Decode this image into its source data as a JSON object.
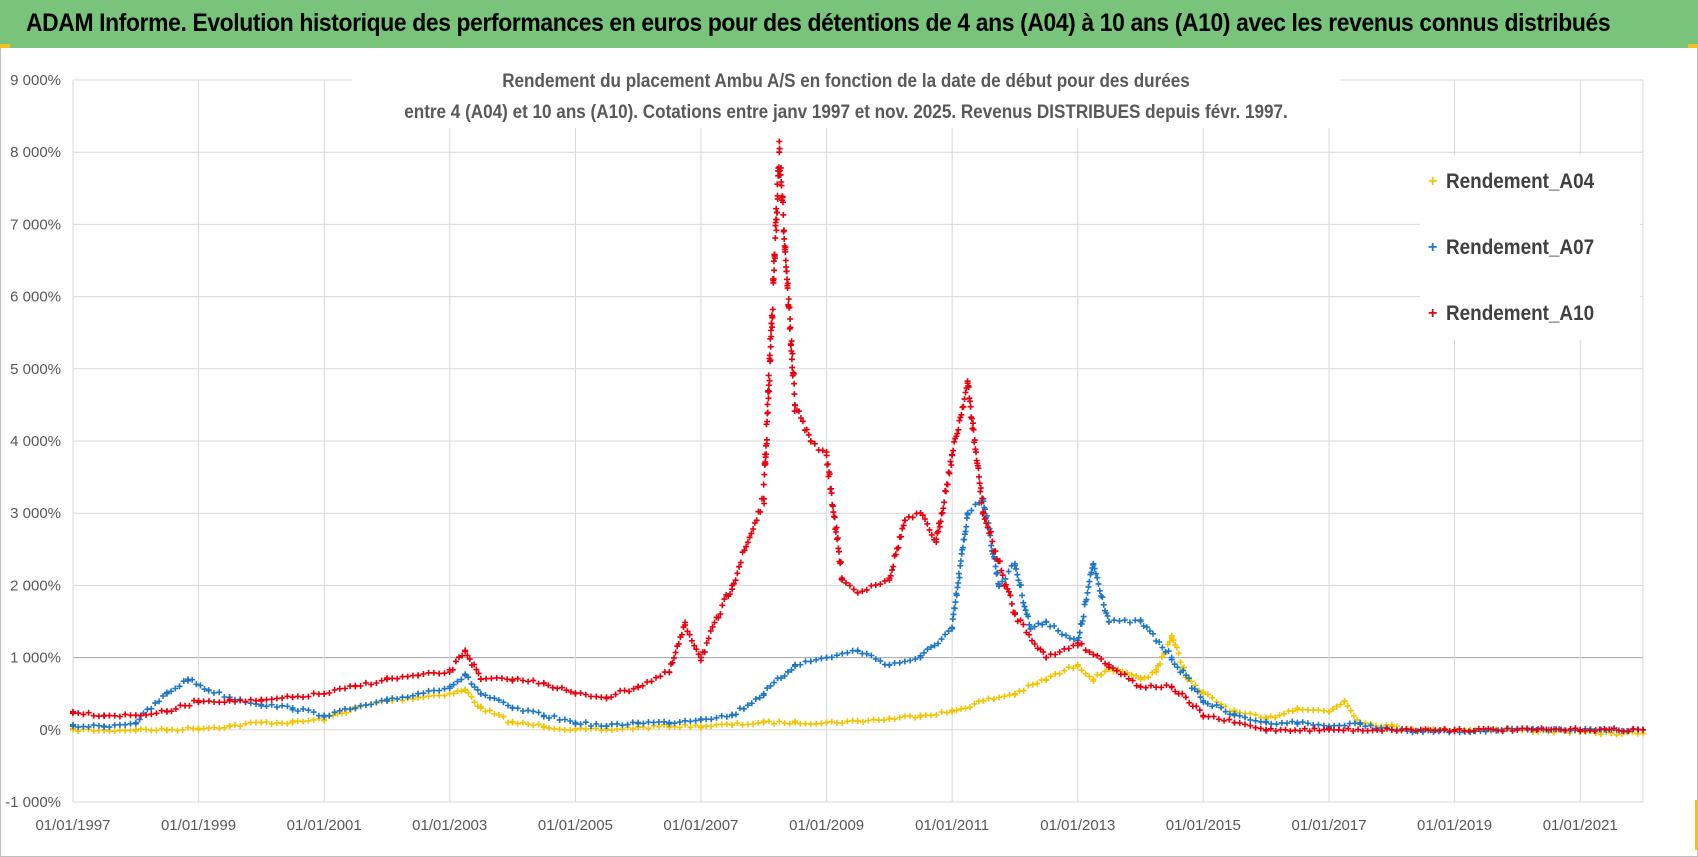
{
  "banner": {
    "title": "ADAM Informe. Evolution historique des performances en euros pour des détentions de 4 ans (A04) à 10 ans (A10) avec les revenus connus distribués"
  },
  "chart_data": {
    "type": "scatter",
    "title_lines": [
      "Rendement du placement Ambu A/S en fonction de la date de début pour des durées",
      "entre 4 (A04) et 10 ans (A10). Cotations entre janv 1997 et nov. 2025. Revenus DISTRIBUES depuis févr. 1997."
    ],
    "xlabel": "",
    "ylabel": "",
    "x_ticks": [
      "01/01/1997",
      "01/01/1999",
      "01/01/2001",
      "01/01/2003",
      "01/01/2005",
      "01/01/2007",
      "01/01/2009",
      "01/01/2011",
      "01/01/2013",
      "01/01/2015",
      "01/01/2017",
      "01/01/2019",
      "01/01/2021"
    ],
    "y_ticks": [
      "-1 000%",
      "0%",
      "1 000%",
      "2 000%",
      "3 000%",
      "4 000%",
      "5 000%",
      "6 000%",
      "7 000%",
      "8 000%",
      "9 000%"
    ],
    "xlim": [
      "1997-01-01",
      "2022-01-01"
    ],
    "ylim": [
      -1000,
      9000
    ],
    "grid": true,
    "legend_position": "top-right",
    "marker": "+",
    "series": [
      {
        "name": "Rendement_A04",
        "color": "#f5c400",
        "x": [
          "1997-01-01",
          "1997-07-01",
          "1998-01-01",
          "1998-07-01",
          "1999-01-01",
          "1999-07-01",
          "2000-01-01",
          "2000-07-01",
          "2001-01-01",
          "2001-07-01",
          "2002-01-01",
          "2002-07-01",
          "2003-01-01",
          "2003-04-01",
          "2003-07-01",
          "2004-01-01",
          "2004-07-01",
          "2005-01-01",
          "2005-07-01",
          "2006-01-01",
          "2006-07-01",
          "2007-01-01",
          "2007-07-01",
          "2008-01-01",
          "2008-07-01",
          "2009-01-01",
          "2009-07-01",
          "2010-01-01",
          "2010-07-01",
          "2011-01-01",
          "2011-07-01",
          "2012-01-01",
          "2012-07-01",
          "2013-01-01",
          "2013-04-01",
          "2013-07-01",
          "2014-01-01",
          "2014-04-01",
          "2014-07-01",
          "2014-10-01",
          "2015-01-01",
          "2015-07-01",
          "2016-01-01",
          "2016-07-01",
          "2017-01-01",
          "2017-04-01",
          "2017-07-01",
          "2018-01-01",
          "2018-07-01",
          "2019-01-01",
          "2019-07-01",
          "2020-01-01",
          "2020-07-01",
          "2021-01-01",
          "2021-07-01",
          "2022-01-01"
        ],
        "y": [
          0,
          -10,
          0,
          0,
          20,
          50,
          100,
          100,
          150,
          300,
          400,
          450,
          500,
          550,
          300,
          100,
          50,
          0,
          0,
          30,
          50,
          50,
          70,
          100,
          100,
          100,
          120,
          150,
          200,
          250,
          400,
          500,
          700,
          900,
          700,
          850,
          700,
          800,
          1300,
          700,
          500,
          250,
          150,
          300,
          250,
          400,
          100,
          50,
          0,
          0,
          0,
          0,
          -20,
          -30,
          -50,
          -50
        ]
      },
      {
        "name": "Rendement_A07",
        "color": "#1f77c4",
        "x": [
          "1997-01-01",
          "1997-07-01",
          "1998-01-01",
          "1998-07-01",
          "1998-11-01",
          "1999-03-01",
          "1999-07-01",
          "2000-01-01",
          "2000-07-01",
          "2001-01-01",
          "2001-07-01",
          "2002-01-01",
          "2002-07-01",
          "2003-01-01",
          "2003-04-01",
          "2003-07-01",
          "2004-01-01",
          "2004-07-01",
          "2005-01-01",
          "2005-07-01",
          "2006-01-01",
          "2006-07-01",
          "2007-01-01",
          "2007-07-01",
          "2008-01-01",
          "2008-07-01",
          "2009-01-01",
          "2009-07-01",
          "2010-01-01",
          "2010-07-01",
          "2011-01-01",
          "2011-04-01",
          "2011-07-01",
          "2011-10-01",
          "2012-01-01",
          "2012-04-01",
          "2012-07-01",
          "2013-01-01",
          "2013-04-01",
          "2013-07-01",
          "2014-01-01",
          "2014-07-01",
          "2015-01-01",
          "2015-07-01",
          "2016-01-01",
          "2016-07-01",
          "2017-01-01",
          "2017-07-01",
          "2018-01-01",
          "2018-07-01",
          "2019-01-01",
          "2019-07-01",
          "2020-01-01",
          "2020-07-01",
          "2021-01-01",
          "2021-07-01",
          "2022-01-01"
        ],
        "y": [
          50,
          50,
          100,
          500,
          700,
          550,
          450,
          350,
          300,
          200,
          300,
          400,
          500,
          600,
          750,
          500,
          300,
          200,
          100,
          50,
          100,
          100,
          150,
          200,
          500,
          900,
          1000,
          1100,
          900,
          1000,
          1400,
          3000,
          3200,
          2000,
          2300,
          1400,
          1500,
          1200,
          2300,
          1500,
          1500,
          1000,
          400,
          200,
          100,
          100,
          50,
          80,
          0,
          -30,
          -20,
          -10,
          0,
          0,
          0,
          0,
          0
        ]
      },
      {
        "name": "Rendement_A10",
        "color": "#e8000f",
        "x": [
          "1997-01-01",
          "1997-07-01",
          "1998-01-01",
          "1998-07-01",
          "1999-01-01",
          "1999-07-01",
          "2000-01-01",
          "2000-07-01",
          "2001-01-01",
          "2001-07-01",
          "2002-01-01",
          "2002-07-01",
          "2003-01-01",
          "2003-04-01",
          "2003-07-01",
          "2004-01-01",
          "2004-07-01",
          "2005-01-01",
          "2005-07-01",
          "2006-01-01",
          "2006-07-01",
          "2006-10-01",
          "2007-01-01",
          "2007-07-01",
          "2008-01-01",
          "2008-04-01",
          "2008-07-01",
          "2008-10-01",
          "2009-01-01",
          "2009-04-01",
          "2009-07-01",
          "2010-01-01",
          "2010-04-01",
          "2010-07-01",
          "2010-10-01",
          "2011-01-01",
          "2011-04-01",
          "2011-07-01",
          "2012-01-01",
          "2012-07-01",
          "2013-01-01",
          "2013-07-01",
          "2014-01-01",
          "2014-07-01",
          "2015-01-01",
          "2015-07-01",
          "2016-01-01",
          "2017-01-01",
          "2018-01-01",
          "2019-01-01",
          "2020-01-01",
          "2021-01-01",
          "2022-01-01"
        ],
        "y": [
          250,
          200,
          200,
          250,
          400,
          400,
          400,
          450,
          500,
          600,
          700,
          750,
          800,
          1100,
          700,
          700,
          650,
          500,
          450,
          600,
          800,
          1450,
          1000,
          2000,
          3200,
          8000,
          4500,
          4000,
          3800,
          2100,
          1900,
          2100,
          2900,
          3000,
          2600,
          3800,
          4800,
          3000,
          1600,
          1000,
          1200,
          900,
          600,
          600,
          200,
          100,
          0,
          0,
          0,
          0,
          0,
          0,
          0
        ]
      }
    ]
  }
}
